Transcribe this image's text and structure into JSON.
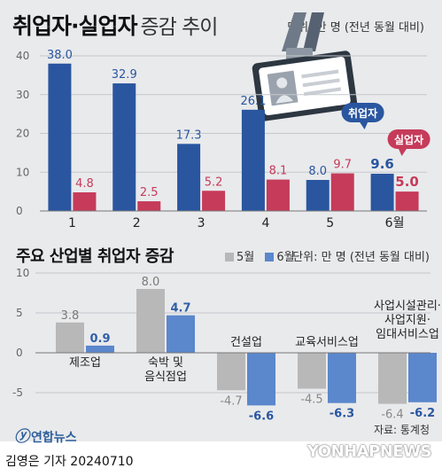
{
  "title_main": "취업자·실업자",
  "title_sub": "증감 추이",
  "unit_top": "단위: 만 명 (전년 동월 대비)",
  "source": "자료: 통계청",
  "logo_text": "연합뉴스",
  "byline": "김영은 기자  20240710",
  "watermark": "YONHAPNEWS",
  "colors": {
    "employed": "#2a56a0",
    "unemployed": "#c63b5a",
    "may": "#b8b8b8",
    "june": "#5b87cc"
  },
  "chart_data": [
    {
      "type": "bar",
      "title": "취업자·실업자 증감 추이",
      "categories": [
        "1",
        "2",
        "3",
        "4",
        "5",
        "6월"
      ],
      "series": [
        {
          "name": "취업자",
          "values": [
            38.0,
            32.9,
            17.3,
            26.1,
            8.0,
            9.6
          ]
        },
        {
          "name": "실업자",
          "values": [
            4.8,
            2.5,
            5.2,
            8.1,
            9.7,
            5.0
          ]
        }
      ],
      "labels": [
        [
          "38.0",
          "32.9",
          "17.3",
          "26.1",
          "8.0",
          "9.6"
        ],
        [
          "4.8",
          "2.5",
          "5.2",
          "8.1",
          "9.7",
          "5.0"
        ]
      ],
      "yticks": [
        "0",
        "10",
        "20",
        "30",
        "40"
      ],
      "ylim": [
        0,
        40
      ],
      "callouts": [
        "취업자",
        "실업자"
      ],
      "grid": true
    },
    {
      "type": "bar",
      "title": "주요 산업별 취업자 증감",
      "categories": [
        "제조업",
        "숙박 및 음식점업",
        "건설업",
        "교육서비스업",
        "사업시설관리·사업지원·임대서비스업"
      ],
      "category_lines": [
        [
          "제조업"
        ],
        [
          "숙박 및",
          "음식점업"
        ],
        [
          "건설업"
        ],
        [
          "교육서비스업"
        ],
        [
          "사업시설관리·",
          "사업지원·",
          "임대서비스업"
        ]
      ],
      "series": [
        {
          "name": "5월",
          "values": [
            3.8,
            8.0,
            -4.7,
            -4.5,
            -6.4
          ]
        },
        {
          "name": "6월",
          "values": [
            0.9,
            4.7,
            -6.6,
            -6.3,
            -6.2
          ]
        }
      ],
      "labels": [
        [
          "3.8",
          "8.0",
          "-4.7",
          "-4.5",
          "-6.4"
        ],
        [
          "0.9",
          "4.7",
          "-6.6",
          "-6.3",
          "-6.2"
        ]
      ],
      "yticks": [
        "-5",
        "0",
        "5",
        "10"
      ],
      "ylim": [
        -8,
        10
      ],
      "unit": "단위: 만 명 (전년 동월 대비)",
      "legend": "top",
      "grid": true
    }
  ]
}
